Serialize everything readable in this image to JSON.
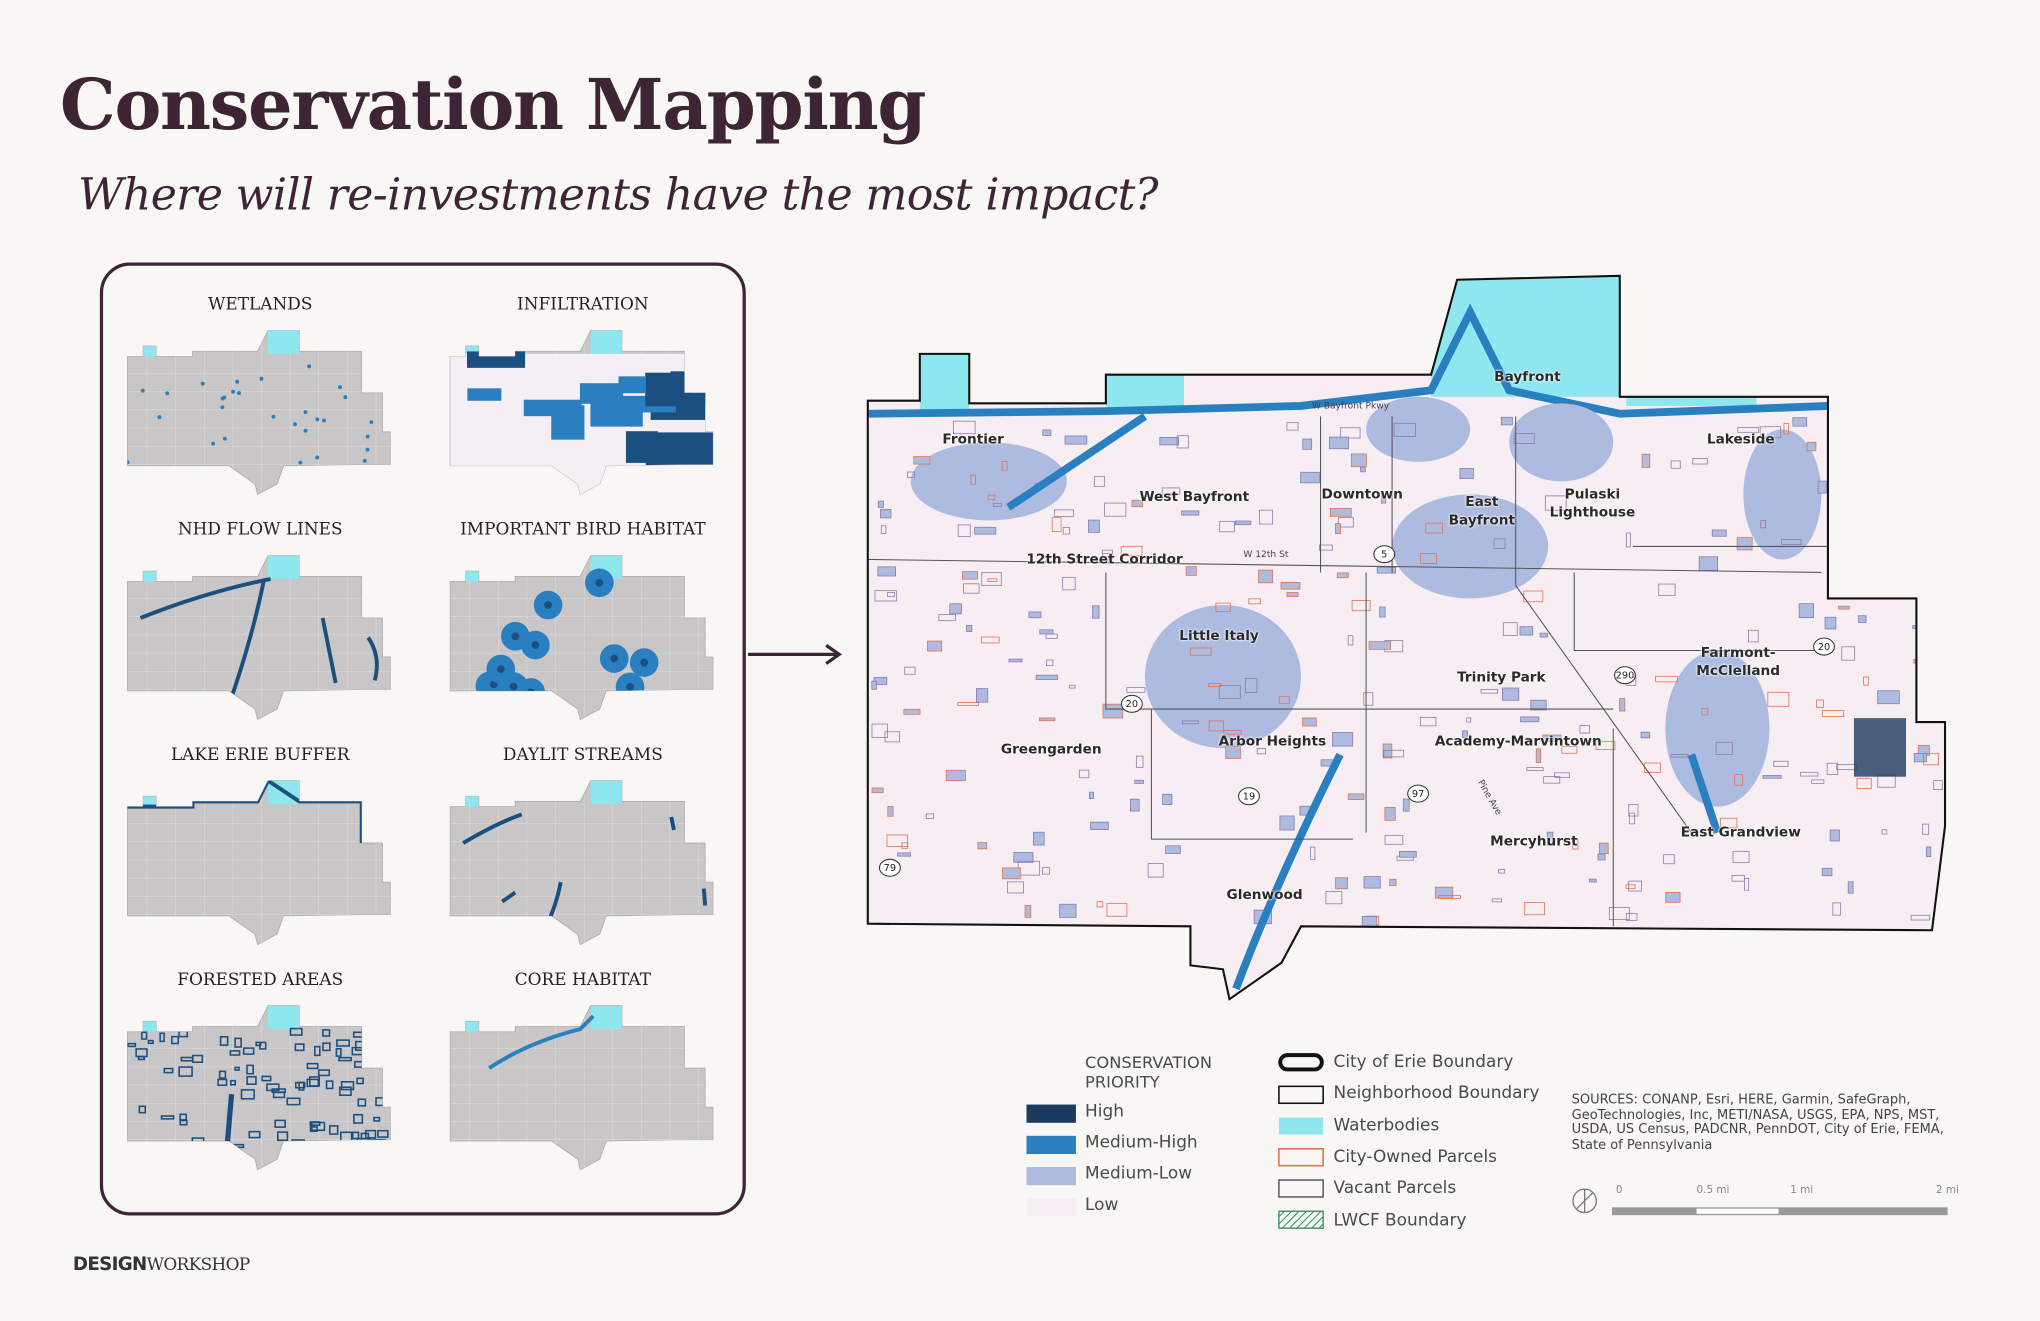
{
  "header": {
    "title": "Conservation Mapping",
    "subtitle": "Where will re-investments have the most impact?"
  },
  "panels": [
    {
      "title": "WETLANDS"
    },
    {
      "title": "INFILTRATION"
    },
    {
      "title": "NHD FLOW LINES"
    },
    {
      "title": "IMPORTANT BIRD HABITAT"
    },
    {
      "title": "LAKE ERIE BUFFER"
    },
    {
      "title": "DAYLIT STREAMS"
    },
    {
      "title": "FORESTED AREAS"
    },
    {
      "title": "CORE HABITAT"
    }
  ],
  "map": {
    "neighborhoods": [
      "Bayfront",
      "Frontier",
      "Lakeside",
      "West Bayfront",
      "Downtown",
      "East Bayfront",
      "Pulaski Lighthouse",
      "12th Street Corridor",
      "Little Italy",
      "Fairmont-McClelland",
      "Trinity Park",
      "Greengarden",
      "Arbor Heights",
      "Academy-Marvintown",
      "East Grandview",
      "Mercyhurst",
      "Glenwood"
    ],
    "roads": [
      "W Bayfront Pkwy",
      "W 12th St",
      "Pine Ave"
    ],
    "shields": [
      "5",
      "20",
      "290",
      "20",
      "19",
      "97",
      "79"
    ]
  },
  "legend": {
    "priority": {
      "title": "CONSERVATION PRIORITY",
      "items": [
        "High",
        "Medium-High",
        "Medium-Low",
        "Low"
      ]
    },
    "layers": [
      "City of Erie Boundary",
      "Neighborhood Boundary",
      "Waterbodies",
      "City-Owned Parcels",
      "Vacant Parcels",
      "LWCF Boundary"
    ]
  },
  "sources": "SOURCES: CONANP, Esri, HERE, Garmin, SafeGraph, GeoTechnologies, Inc, METI/NASA, USGS, EPA, NPS, MST, USDA, US Census, PADCNR, PennDOT, City of Erie, FEMA, State of Pennsylvania",
  "scale": {
    "labels": [
      "0",
      "0.5 mi",
      "1 mi",
      "2 mi"
    ]
  },
  "logo": {
    "bold": "DESIGN",
    "light": "WORKSHOP"
  }
}
